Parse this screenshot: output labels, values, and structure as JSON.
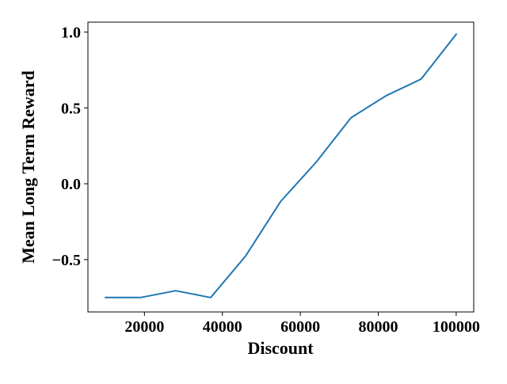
{
  "chart_data": {
    "type": "line",
    "title": "",
    "xlabel": "Discount",
    "ylabel": "Mean Long Term Reward",
    "xlim": [
      5500,
      104500
    ],
    "ylim": [
      -0.845,
      1.065
    ],
    "x_ticks": [
      20000,
      40000,
      60000,
      80000,
      100000
    ],
    "x_tick_labels": [
      "20000",
      "40000",
      "60000",
      "80000",
      "100000"
    ],
    "y_ticks": [
      -0.5,
      0.0,
      0.5,
      1.0
    ],
    "y_tick_labels": [
      "−0.5",
      "0.0",
      "0.5",
      "1.0"
    ],
    "grid": false,
    "legend": "none",
    "series": [
      {
        "color": "#1f77b4",
        "x": [
          10000,
          19000,
          28000,
          37000,
          46000,
          55000,
          64000,
          73000,
          82000,
          91000,
          100000
        ],
        "y": [
          -0.75,
          -0.75,
          -0.705,
          -0.75,
          -0.475,
          -0.115,
          0.14,
          0.435,
          0.58,
          0.69,
          0.985
        ]
      }
    ]
  }
}
